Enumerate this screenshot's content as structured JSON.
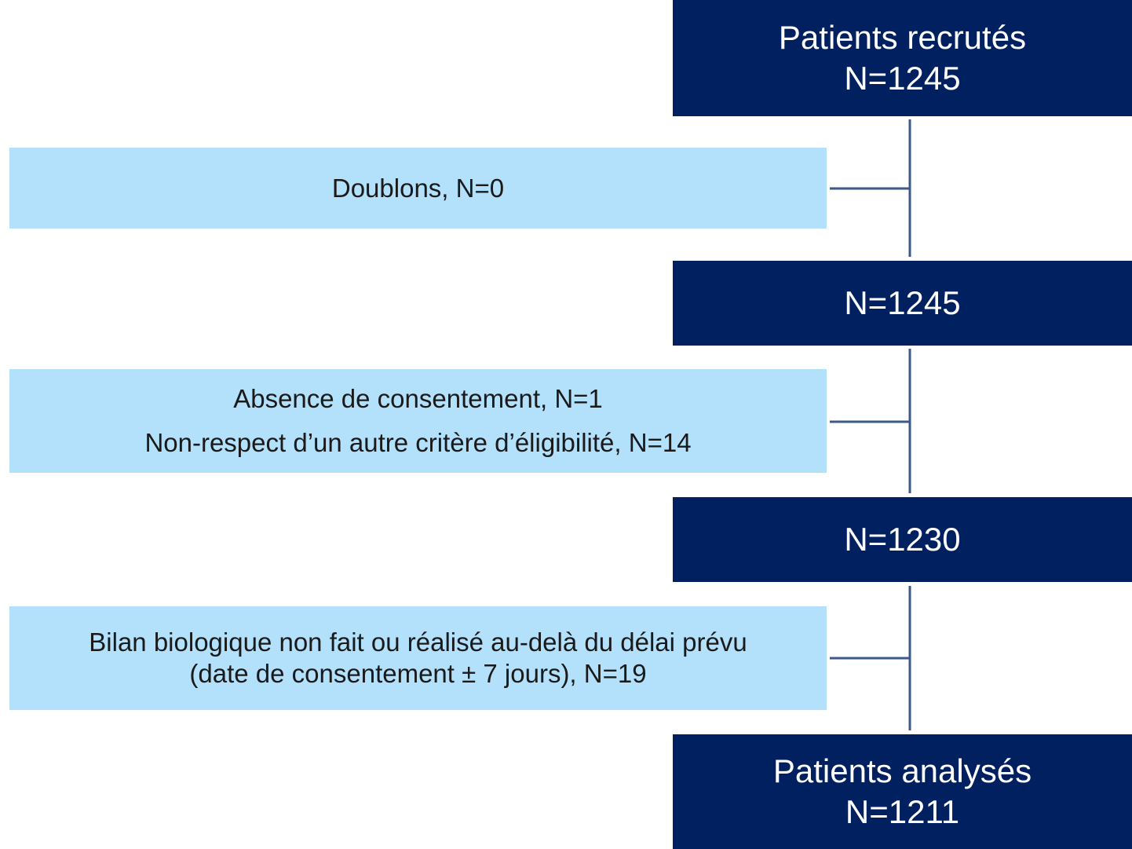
{
  "nodes": [
    {
      "lines": [
        "Patients recrutés",
        "N=1245"
      ]
    },
    {
      "lines": [
        "N=1245"
      ]
    },
    {
      "lines": [
        "N=1230"
      ]
    },
    {
      "lines": [
        "Patients analysés",
        "N=1211"
      ]
    }
  ],
  "exclusions": [
    {
      "lines": [
        "Doublons, N=0"
      ]
    },
    {
      "lines": [
        "Absence de consentement, N=1",
        "Non-respect d’un autre critère d’éligibilité, N=14"
      ]
    },
    {
      "lines": [
        "Bilan biologique non fait ou réalisé au-delà du délai prévu",
        "(date de consentement ± 7 jours), N=19"
      ]
    }
  ]
}
